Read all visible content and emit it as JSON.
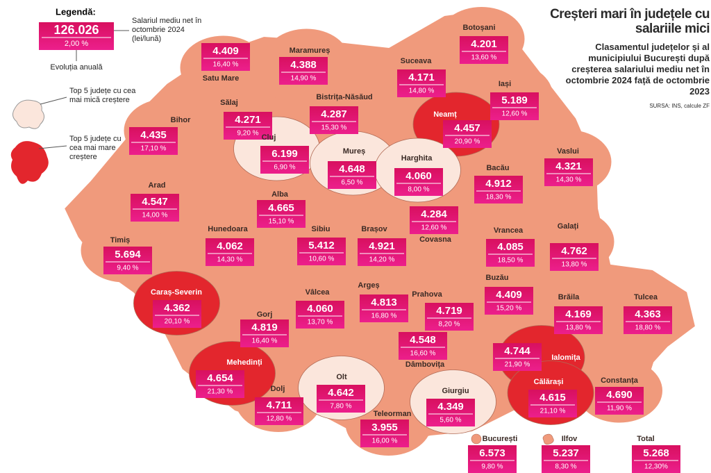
{
  "header": {
    "title": "Creșteri mari în județele cu salariile mici",
    "subtitle": "Clasamentul județelor și al municipiului București după creșterea salariului mediu net în octombrie 2024 față de octombrie 2023",
    "source": "SURSA: INS, calcule ZF"
  },
  "legend": {
    "title": "Legendă:",
    "salary": "126.026",
    "growth": "2,00 %",
    "salary_note": "Salariul mediu net în octombrie 2024 (lei/lună)",
    "growth_note": "Evoluția anuală",
    "low_note": "Top 5 județe cu cea mai mică creștere",
    "low_color": "#fbe6dc",
    "high_note": "Top 5 județe cu cea mai mare creștere",
    "high_color": "#e3262d"
  },
  "map": {
    "base_color": "#f09a7c",
    "counties": [
      {
        "name": "Satu Mare",
        "salary": "4.409",
        "growth": "16,40 %",
        "color": "#f09a7c"
      },
      {
        "name": "Maramureș",
        "salary": "4.388",
        "growth": "14,90 %",
        "color": "#f09a7c"
      },
      {
        "name": "Bistrița-Năsăud",
        "salary": "4.287",
        "growth": "15,30 %",
        "color": "#f09a7c"
      },
      {
        "name": "Suceava",
        "salary": "4.171",
        "growth": "14,80 %",
        "color": "#f09a7c"
      },
      {
        "name": "Botoșani",
        "salary": "4.201",
        "growth": "13,60 %",
        "color": "#f09a7c"
      },
      {
        "name": "Iași",
        "salary": "5.189",
        "growth": "12,60 %",
        "color": "#f09a7c"
      },
      {
        "name": "Neamț",
        "salary": "4.457",
        "growth": "20,90 %",
        "color": "#e3262d"
      },
      {
        "name": "Bihor",
        "salary": "4.435",
        "growth": "17,10 %",
        "color": "#f09a7c"
      },
      {
        "name": "Sălaj",
        "salary": "4.271",
        "growth": "9,20 %",
        "color": "#f09a7c"
      },
      {
        "name": "Cluj",
        "salary": "6.199",
        "growth": "6,90 %",
        "color": "#fbe6dc"
      },
      {
        "name": "Mureș",
        "salary": "4.648",
        "growth": "6,50 %",
        "color": "#fbe6dc"
      },
      {
        "name": "Harghita",
        "salary": "4.060",
        "growth": "8,00 %",
        "color": "#fbe6dc"
      },
      {
        "name": "Vaslui",
        "salary": "4.321",
        "growth": "14,30 %",
        "color": "#f09a7c"
      },
      {
        "name": "Bacău",
        "salary": "4.912",
        "growth": "18,30 %",
        "color": "#f09a7c"
      },
      {
        "name": "Arad",
        "salary": "4.547",
        "growth": "14,00 %",
        "color": "#f09a7c"
      },
      {
        "name": "Alba",
        "salary": "4.665",
        "growth": "15,10 %",
        "color": "#f09a7c"
      },
      {
        "name": "Covasna",
        "salary": "4.284",
        "growth": "12,60 %",
        "color": "#f09a7c"
      },
      {
        "name": "Hunedoara",
        "salary": "4.062",
        "growth": "14,30 %",
        "color": "#f09a7c"
      },
      {
        "name": "Sibiu",
        "salary": "5.412",
        "growth": "10,60 %",
        "color": "#f09a7c"
      },
      {
        "name": "Brașov",
        "salary": "4.921",
        "growth": "14,20 %",
        "color": "#f09a7c"
      },
      {
        "name": "Vrancea",
        "salary": "4.085",
        "growth": "18,50 %",
        "color": "#f09a7c"
      },
      {
        "name": "Galați",
        "salary": "4.762",
        "growth": "13,80 %",
        "color": "#f09a7c"
      },
      {
        "name": "Timiș",
        "salary": "5.694",
        "growth": "9,40 %",
        "color": "#f09a7c"
      },
      {
        "name": "Caraș-Severin",
        "salary": "4.362",
        "growth": "20,10 %",
        "color": "#e3262d"
      },
      {
        "name": "Vâlcea",
        "salary": "4.060",
        "growth": "13,70 %",
        "color": "#f09a7c"
      },
      {
        "name": "Argeș",
        "salary": "4.813",
        "growth": "16,80 %",
        "color": "#f09a7c"
      },
      {
        "name": "Prahova",
        "salary": "4.719",
        "growth": "8,20 %",
        "color": "#f09a7c"
      },
      {
        "name": "Buzău",
        "salary": "4.409",
        "growth": "15,20 %",
        "color": "#f09a7c"
      },
      {
        "name": "Brăila",
        "salary": "4.169",
        "growth": "13,80 %",
        "color": "#f09a7c"
      },
      {
        "name": "Tulcea",
        "salary": "4.363",
        "growth": "18,80 %",
        "color": "#f09a7c"
      },
      {
        "name": "Gorj",
        "salary": "4.819",
        "growth": "16,40 %",
        "color": "#f09a7c"
      },
      {
        "name": "Dâmbovița",
        "salary": "4.548",
        "growth": "16,60 %",
        "color": "#f09a7c"
      },
      {
        "name": "Ialomița",
        "salary": "4.744",
        "growth": "21,90 %",
        "color": "#e3262d"
      },
      {
        "name": "Mehedinți",
        "salary": "4.654",
        "growth": "21,30 %",
        "color": "#e3262d"
      },
      {
        "name": "Olt",
        "salary": "4.642",
        "growth": "7,80 %",
        "color": "#fbe6dc"
      },
      {
        "name": "Dolj",
        "salary": "4.711",
        "growth": "12,80 %",
        "color": "#f09a7c"
      },
      {
        "name": "Călărași",
        "salary": "4.615",
        "growth": "21,10 %",
        "color": "#e3262d"
      },
      {
        "name": "Constanța",
        "salary": "4.690",
        "growth": "11,90 %",
        "color": "#f09a7c"
      },
      {
        "name": "Giurgiu",
        "salary": "4.349",
        "growth": "5,60 %",
        "color": "#fbe6dc"
      },
      {
        "name": "Teleorman",
        "salary": "3.955",
        "growth": "16,00 %",
        "color": "#f09a7c"
      }
    ]
  },
  "bottom": [
    {
      "name": "București",
      "salary": "6.573",
      "growth": "9,80 %",
      "color": "#f09a7c"
    },
    {
      "name": "Ilfov",
      "salary": "5.237",
      "growth": "8,30 %",
      "color": "#f09a7c"
    },
    {
      "name": "Total",
      "salary": "5.268",
      "growth": "12,30%"
    }
  ]
}
